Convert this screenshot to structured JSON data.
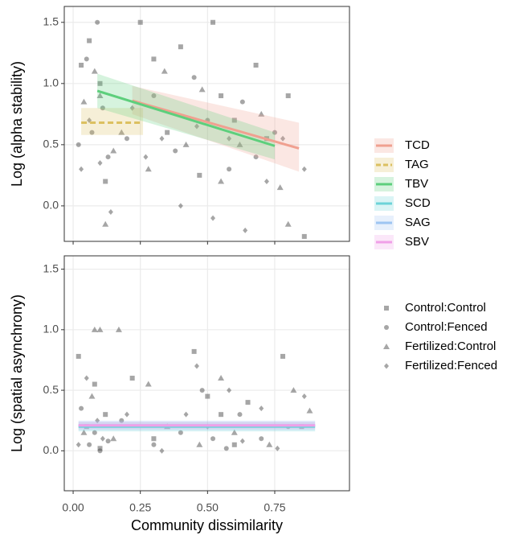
{
  "chart_data": [
    {
      "type": "scatter",
      "ylabel": "Log (alpha stability)",
      "xlim": [
        -0.033,
        1.028
      ],
      "ylim": [
        -0.29,
        1.63
      ],
      "xticks": [
        {
          "value": 0,
          "label": "0.00"
        },
        {
          "value": 0.25,
          "label": "0.25"
        },
        {
          "value": 0.5,
          "label": "0.50"
        },
        {
          "value": 0.75,
          "label": "0.75"
        }
      ],
      "yticks": [
        {
          "value": 0,
          "label": "0.0"
        },
        {
          "value": 0.5,
          "label": "0.5"
        },
        {
          "value": 1,
          "label": "1.0"
        },
        {
          "value": 1.5,
          "label": "1.5"
        }
      ],
      "grid": true,
      "show_xtick_labels": false,
      "point_color": "#4d4d4d",
      "series": [
        {
          "shape": "square",
          "x": [
            0.03,
            0.06,
            0.1,
            0.12,
            0.25,
            0.3,
            0.35,
            0.4,
            0.47,
            0.52,
            0.55,
            0.6,
            0.68,
            0.72,
            0.86,
            0.8
          ],
          "values": [
            1.15,
            1.35,
            1.0,
            0.2,
            1.5,
            1.2,
            0.6,
            1.3,
            0.25,
            1.5,
            0.9,
            0.7,
            1.15,
            0.55,
            -0.25,
            0.9
          ]
        },
        {
          "shape": "circle",
          "x": [
            0.02,
            0.05,
            0.07,
            0.09,
            0.11,
            0.13,
            0.2,
            0.3,
            0.38,
            0.45,
            0.5,
            0.58,
            0.63,
            0.68,
            0.75
          ],
          "values": [
            0.5,
            1.2,
            0.6,
            1.5,
            0.8,
            0.4,
            0.55,
            0.9,
            0.45,
            1.05,
            0.7,
            0.3,
            0.85,
            0.4,
            0.6
          ]
        },
        {
          "shape": "triangle",
          "x": [
            0.04,
            0.08,
            0.1,
            0.12,
            0.18,
            0.28,
            0.34,
            0.42,
            0.48,
            0.55,
            0.62,
            0.7,
            0.77,
            0.8,
            0.15
          ],
          "values": [
            0.85,
            1.1,
            0.9,
            -0.15,
            0.6,
            0.3,
            1.1,
            0.5,
            0.95,
            0.2,
            0.5,
            0.75,
            0.15,
            -0.15,
            0.45
          ]
        },
        {
          "shape": "diamond",
          "x": [
            0.03,
            0.06,
            0.1,
            0.14,
            0.22,
            0.27,
            0.33,
            0.4,
            0.46,
            0.52,
            0.58,
            0.64,
            0.72,
            0.78,
            0.86
          ],
          "values": [
            0.3,
            0.7,
            0.35,
            -0.05,
            0.8,
            0.4,
            0.55,
            0.0,
            0.65,
            -0.1,
            0.55,
            -0.2,
            0.2,
            0.55,
            0.3
          ]
        }
      ],
      "fits": [
        {
          "name": "TCD",
          "color": "#f0a090",
          "linestyle": "solid",
          "x": [
            0.22,
            0.84
          ],
          "values": [
            0.86,
            0.47
          ],
          "lower": [
            0.75,
            0.28
          ],
          "upper": [
            0.98,
            0.68
          ]
        },
        {
          "name": "TAG",
          "color": "#dcc060",
          "linestyle": "dashed",
          "x": [
            0.03,
            0.26
          ],
          "values": [
            0.68,
            0.68
          ],
          "lower": [
            0.58,
            0.58
          ],
          "upper": [
            0.8,
            0.8
          ]
        },
        {
          "name": "TBV",
          "color": "#5dcf7c",
          "linestyle": "solid",
          "x": [
            0.09,
            0.75
          ],
          "values": [
            0.94,
            0.49
          ],
          "lower": [
            0.8,
            0.38
          ],
          "upper": [
            1.08,
            0.6
          ]
        }
      ]
    },
    {
      "type": "scatter",
      "ylabel": "Log (spatial asynchrony)",
      "xlabel": "Community dissimilarity",
      "xlim": [
        -0.033,
        1.028
      ],
      "ylim": [
        -0.33,
        1.61
      ],
      "xticks": [
        {
          "value": 0,
          "label": "0.00"
        },
        {
          "value": 0.25,
          "label": "0.25"
        },
        {
          "value": 0.5,
          "label": "0.50"
        },
        {
          "value": 0.75,
          "label": "0.75"
        }
      ],
      "yticks": [
        {
          "value": 0,
          "label": "0.0"
        },
        {
          "value": 0.5,
          "label": "0.5"
        },
        {
          "value": 1,
          "label": "1.0"
        },
        {
          "value": 1.5,
          "label": "1.5"
        }
      ],
      "grid": true,
      "show_xtick_labels": true,
      "point_color": "#4d4d4d",
      "series": [
        {
          "name": "Control:Control",
          "shape": "square",
          "x": [
            0.02,
            0.05,
            0.08,
            0.1,
            0.12,
            0.22,
            0.3,
            0.45,
            0.5,
            0.55,
            0.6,
            0.65,
            0.78,
            0.85
          ],
          "values": [
            0.78,
            0.2,
            0.55,
            0.02,
            0.3,
            0.6,
            0.1,
            0.82,
            0.45,
            0.3,
            0.05,
            0.4,
            0.78,
            0.2
          ]
        },
        {
          "name": "Control:Fenced",
          "shape": "circle",
          "x": [
            0.03,
            0.06,
            0.08,
            0.1,
            0.13,
            0.18,
            0.3,
            0.4,
            0.48,
            0.52,
            0.57,
            0.62,
            0.7,
            0.8
          ],
          "values": [
            0.35,
            0.05,
            0.15,
            0.0,
            0.08,
            0.25,
            0.05,
            0.15,
            0.5,
            0.1,
            0.02,
            0.3,
            0.1,
            0.2
          ]
        },
        {
          "name": "Fertilized:Control",
          "shape": "triangle",
          "x": [
            0.04,
            0.07,
            0.08,
            0.1,
            0.15,
            0.17,
            0.28,
            0.35,
            0.47,
            0.55,
            0.6,
            0.73,
            0.82,
            0.88
          ],
          "values": [
            0.15,
            0.45,
            1.0,
            1.0,
            0.1,
            1.0,
            0.55,
            0.2,
            0.05,
            0.6,
            0.15,
            0.05,
            0.5,
            0.33
          ]
        },
        {
          "name": "Fertilized:Fenced",
          "shape": "diamond",
          "x": [
            0.02,
            0.05,
            0.09,
            0.11,
            0.2,
            0.33,
            0.42,
            0.46,
            0.5,
            0.58,
            0.63,
            0.7,
            0.76,
            0.86
          ],
          "values": [
            0.05,
            0.6,
            0.25,
            0.1,
            0.3,
            0.0,
            0.3,
            0.7,
            0.2,
            0.5,
            0.08,
            0.35,
            0.02,
            0.45
          ]
        }
      ],
      "fits": [
        {
          "name": "SCD",
          "color": "#6dd3d8",
          "linestyle": "solid",
          "x": [
            0.02,
            0.9
          ],
          "values": [
            0.2,
            0.2
          ],
          "lower": [
            0.16,
            0.16
          ],
          "upper": [
            0.24,
            0.24
          ]
        },
        {
          "name": "SAG",
          "color": "#9ec5f2",
          "linestyle": "solid",
          "x": [
            0.02,
            0.9
          ],
          "values": [
            0.21,
            0.21
          ],
          "lower": [
            0.17,
            0.17
          ],
          "upper": [
            0.25,
            0.25
          ]
        },
        {
          "name": "SBV",
          "color": "#f0a0e8",
          "linestyle": "solid",
          "x": [
            0.02,
            0.9
          ],
          "values": [
            0.21,
            0.21
          ],
          "lower": [
            0.18,
            0.18
          ],
          "upper": [
            0.24,
            0.24
          ]
        }
      ]
    }
  ]
}
